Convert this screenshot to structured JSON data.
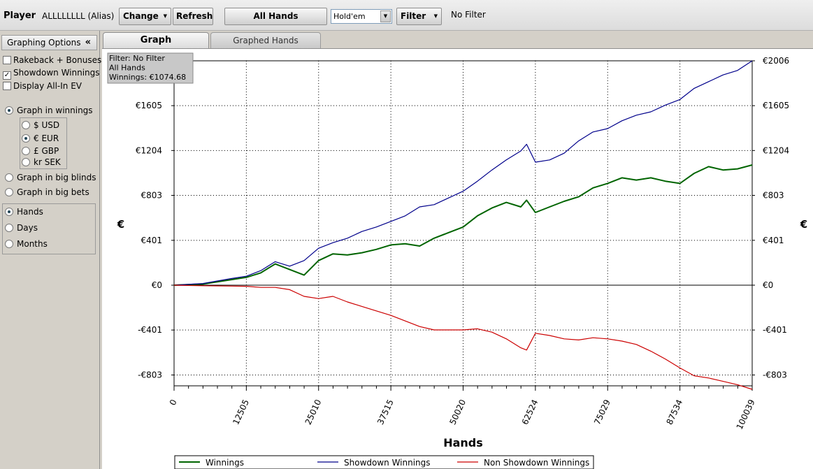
{
  "toolbar": {
    "player_label": "Player",
    "player_name": "ALLLLLLLL (Alias)",
    "change_label": "Change",
    "refresh_label": "Refresh",
    "all_hands_label": "All Hands",
    "game_value": "Hold'em",
    "filter_label": "Filter",
    "filter_status": "No Filter"
  },
  "sidebar": {
    "header": "Graphing Options",
    "collapse_glyph": "«",
    "options": [
      {
        "label": "Rakeback + Bonuses",
        "checked": false
      },
      {
        "label": "Showdown Winnings",
        "checked": true
      },
      {
        "label": "Display All-In EV",
        "checked": false
      }
    ],
    "graph_modes": [
      {
        "label": "Graph in winnings",
        "selected": true
      },
      {
        "label": "Graph in big blinds",
        "selected": false
      },
      {
        "label": "Graph in big bets",
        "selected": false
      }
    ],
    "currencies": [
      {
        "label": "$ USD",
        "selected": false
      },
      {
        "label": "€ EUR",
        "selected": true
      },
      {
        "label": "£ GBP",
        "selected": false
      },
      {
        "label": "kr SEK",
        "selected": false
      }
    ],
    "units": [
      {
        "label": "Hands",
        "selected": true
      },
      {
        "label": "Days",
        "selected": false
      },
      {
        "label": "Months",
        "selected": false
      }
    ]
  },
  "tabs": [
    {
      "label": "Graph",
      "active": true
    },
    {
      "label": "Graphed Hands",
      "active": false
    }
  ],
  "chart_data": {
    "type": "line",
    "xlabel": "Hands",
    "ylabel": "€",
    "ylabel_right": "€",
    "xlim": [
      0,
      100039
    ],
    "ylim": [
      -900,
      2006
    ],
    "x_ticks": [
      0,
      12505,
      25010,
      37515,
      50020,
      62524,
      75029,
      87534,
      100039
    ],
    "y_ticks": [
      -803,
      -401,
      0,
      401,
      803,
      1204,
      1605,
      2006
    ],
    "y_tick_labels": [
      "-€803",
      "-€401",
      "€0",
      "€401",
      "€803",
      "€1204",
      "€1605",
      "€2006"
    ],
    "grid": true,
    "info_box": {
      "line1": "Filter: No Filter",
      "line2": "All Hands",
      "line3": "Winnings: €1074.68"
    },
    "legend_position": "bottom",
    "x": [
      0,
      5000,
      10000,
      12505,
      15000,
      17500,
      20000,
      22500,
      25000,
      27500,
      30000,
      32500,
      35000,
      37515,
      40000,
      42500,
      45000,
      47500,
      50020,
      52500,
      55000,
      57500,
      60000,
      61000,
      62524,
      65000,
      67500,
      70000,
      72500,
      75029,
      77500,
      80000,
      82500,
      85000,
      87534,
      90000,
      92500,
      95000,
      97500,
      100039
    ],
    "series": [
      {
        "name": "Winnings",
        "color": "#006400",
        "values": [
          0,
          10,
          50,
          70,
          110,
          190,
          140,
          90,
          220,
          280,
          270,
          290,
          320,
          360,
          370,
          350,
          420,
          470,
          520,
          620,
          690,
          740,
          700,
          760,
          650,
          700,
          750,
          790,
          870,
          910,
          960,
          940,
          960,
          930,
          910,
          1000,
          1060,
          1030,
          1040,
          1074.68
        ]
      },
      {
        "name": "Showdown Winnings",
        "color": "#00008b",
        "values": [
          0,
          15,
          60,
          80,
          130,
          210,
          170,
          220,
          330,
          380,
          420,
          480,
          520,
          570,
          620,
          700,
          720,
          780,
          840,
          930,
          1030,
          1120,
          1200,
          1260,
          1100,
          1120,
          1180,
          1290,
          1370,
          1400,
          1470,
          1520,
          1550,
          1610,
          1660,
          1760,
          1820,
          1880,
          1920,
          2006
        ]
      },
      {
        "name": "Non Showdown Winnings",
        "color": "#cc0000",
        "values": [
          0,
          -5,
          -8,
          -10,
          -20,
          -20,
          -40,
          -100,
          -120,
          -100,
          -150,
          -190,
          -230,
          -270,
          -320,
          -370,
          -400,
          -400,
          -400,
          -390,
          -420,
          -480,
          -560,
          -580,
          -430,
          -450,
          -480,
          -490,
          -470,
          -480,
          -500,
          -530,
          -590,
          -660,
          -740,
          -810,
          -830,
          -860,
          -890,
          -931
        ]
      }
    ]
  }
}
